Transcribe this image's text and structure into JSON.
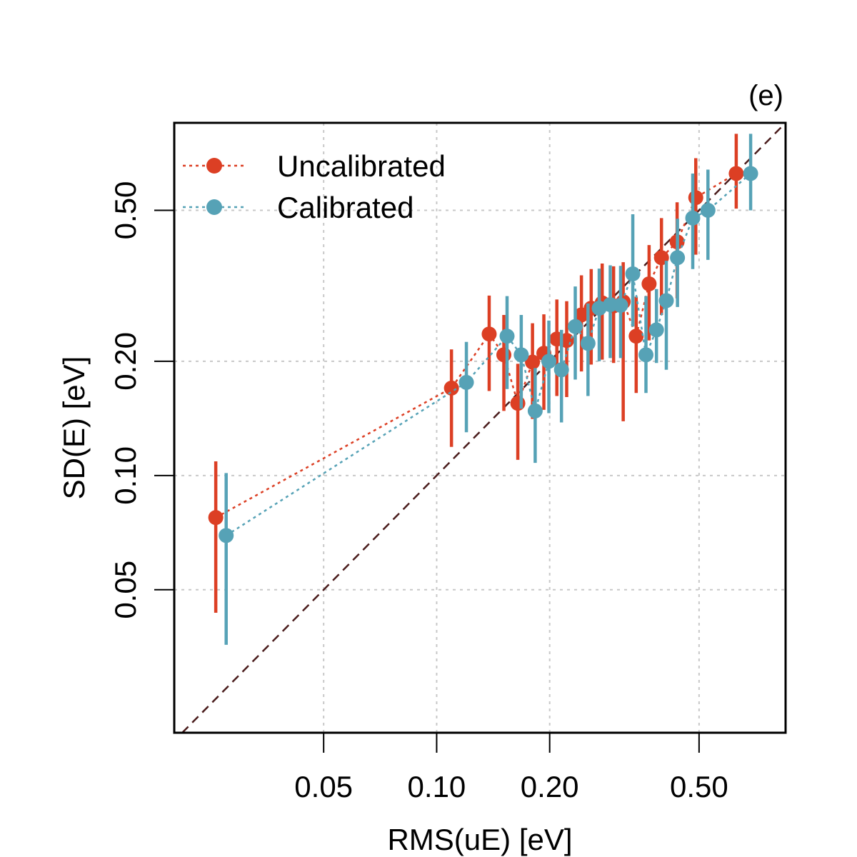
{
  "chart_data": {
    "type": "scatter",
    "panel_label": "(e)",
    "xlabel": "RMS(uE) [eV]",
    "ylabel": "SD(E) [eV]",
    "scale": "log-log",
    "xlim": [
      0.02,
      0.85
    ],
    "ylim": [
      0.021,
      0.85
    ],
    "x_ticks": [
      0.05,
      0.1,
      0.2,
      0.5
    ],
    "x_tick_labels": [
      "0.05",
      "0.10",
      "0.20",
      "0.50"
    ],
    "y_ticks": [
      0.05,
      0.1,
      0.2,
      0.5
    ],
    "y_tick_labels": [
      "0.05",
      "0.10",
      "0.20",
      "0.50"
    ],
    "grid": true,
    "legend_position": "top-left",
    "identity_line": true,
    "colors": {
      "uncalibrated": "#DC3F24",
      "calibrated": "#56A2B6",
      "identity": "#4A1C1C",
      "grid": "#c8c8c8"
    },
    "series": [
      {
        "name": "Uncalibrated",
        "color": "#DC3F24",
        "points": [
          {
            "x": 0.0258,
            "y": 0.0775,
            "lo": 0.0435,
            "hi": 0.109
          },
          {
            "x": 0.1095,
            "y": 0.17,
            "lo": 0.119,
            "hi": 0.215
          },
          {
            "x": 0.138,
            "y": 0.236,
            "lo": 0.167,
            "hi": 0.298
          },
          {
            "x": 0.151,
            "y": 0.208,
            "lo": 0.148,
            "hi": 0.265
          },
          {
            "x": 0.1645,
            "y": 0.155,
            "lo": 0.11,
            "hi": 0.197
          },
          {
            "x": 0.18,
            "y": 0.199,
            "lo": 0.141,
            "hi": 0.252
          },
          {
            "x": 0.193,
            "y": 0.21,
            "lo": 0.149,
            "hi": 0.266
          },
          {
            "x": 0.209,
            "y": 0.229,
            "lo": 0.162,
            "hi": 0.291
          },
          {
            "x": 0.222,
            "y": 0.227,
            "lo": 0.161,
            "hi": 0.288
          },
          {
            "x": 0.243,
            "y": 0.265,
            "lo": 0.188,
            "hi": 0.337
          },
          {
            "x": 0.258,
            "y": 0.276,
            "lo": 0.196,
            "hi": 0.35
          },
          {
            "x": 0.276,
            "y": 0.285,
            "lo": 0.202,
            "hi": 0.362
          },
          {
            "x": 0.296,
            "y": 0.28,
            "lo": 0.198,
            "hi": 0.356
          },
          {
            "x": 0.314,
            "y": 0.287,
            "lo": 0.139,
            "hi": 0.365
          },
          {
            "x": 0.34,
            "y": 0.233,
            "lo": 0.165,
            "hi": 0.296
          },
          {
            "x": 0.368,
            "y": 0.32,
            "lo": 0.227,
            "hi": 0.405
          },
          {
            "x": 0.397,
            "y": 0.375,
            "lo": 0.265,
            "hi": 0.477
          },
          {
            "x": 0.437,
            "y": 0.413,
            "lo": 0.293,
            "hi": 0.525
          },
          {
            "x": 0.49,
            "y": 0.54,
            "lo": 0.382,
            "hi": 0.686
          },
          {
            "x": 0.628,
            "y": 0.625,
            "lo": 0.505,
            "hi": 0.795
          }
        ]
      },
      {
        "name": "Calibrated",
        "color": "#56A2B6",
        "points": [
          {
            "x": 0.0275,
            "y": 0.0695,
            "lo": 0.0358,
            "hi": 0.1015
          },
          {
            "x": 0.12,
            "y": 0.176,
            "lo": 0.13,
            "hi": 0.225
          },
          {
            "x": 0.154,
            "y": 0.233,
            "lo": 0.169,
            "hi": 0.297
          },
          {
            "x": 0.168,
            "y": 0.208,
            "lo": 0.15,
            "hi": 0.265
          },
          {
            "x": 0.183,
            "y": 0.148,
            "lo": 0.108,
            "hi": 0.192
          },
          {
            "x": 0.199,
            "y": 0.2,
            "lo": 0.146,
            "hi": 0.256
          },
          {
            "x": 0.215,
            "y": 0.19,
            "lo": 0.138,
            "hi": 0.242
          },
          {
            "x": 0.234,
            "y": 0.247,
            "lo": 0.179,
            "hi": 0.315
          },
          {
            "x": 0.253,
            "y": 0.223,
            "lo": 0.162,
            "hi": 0.284
          },
          {
            "x": 0.271,
            "y": 0.276,
            "lo": 0.2,
            "hi": 0.351
          },
          {
            "x": 0.29,
            "y": 0.282,
            "lo": 0.204,
            "hi": 0.358
          },
          {
            "x": 0.309,
            "y": 0.281,
            "lo": 0.204,
            "hi": 0.357
          },
          {
            "x": 0.333,
            "y": 0.34,
            "lo": 0.247,
            "hi": 0.488
          },
          {
            "x": 0.361,
            "y": 0.208,
            "lo": 0.165,
            "hi": 0.297
          },
          {
            "x": 0.385,
            "y": 0.242,
            "lo": 0.198,
            "hi": 0.31
          },
          {
            "x": 0.409,
            "y": 0.289,
            "lo": 0.19,
            "hi": 0.368
          },
          {
            "x": 0.438,
            "y": 0.375,
            "lo": 0.278,
            "hi": 0.475
          },
          {
            "x": 0.481,
            "y": 0.477,
            "lo": 0.35,
            "hi": 0.625
          },
          {
            "x": 0.528,
            "y": 0.5,
            "lo": 0.37,
            "hi": 0.64
          },
          {
            "x": 0.686,
            "y": 0.625,
            "lo": 0.5,
            "hi": 0.795
          }
        ]
      }
    ]
  }
}
